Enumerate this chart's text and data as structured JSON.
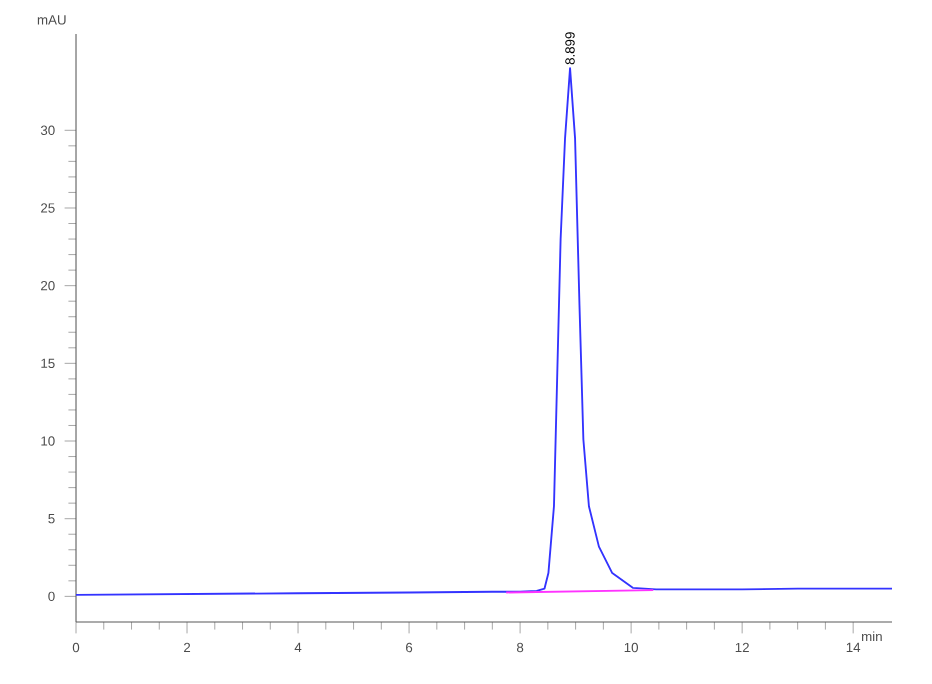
{
  "chart_data": {
    "type": "line",
    "xlabel": "min",
    "ylabel": "mAU",
    "xlim": [
      0,
      14.7
    ],
    "ylim": [
      -1.65,
      36.2
    ],
    "xticks": [
      0,
      2,
      4,
      6,
      8,
      10,
      12,
      14
    ],
    "yticks": [
      0,
      5,
      10,
      15,
      20,
      25,
      30
    ],
    "series": [
      {
        "color": "#3333ff",
        "x": [
          0,
          2,
          4,
          6,
          7.5,
          8.0,
          8.3,
          8.44,
          8.51,
          8.61,
          8.67,
          8.73,
          8.81,
          8.9,
          8.99,
          9.07,
          9.14,
          9.24,
          9.42,
          9.66,
          10.03,
          10.45,
          11,
          12,
          13,
          14,
          14.7
        ],
        "values": [
          0.1,
          0.15,
          0.2,
          0.25,
          0.3,
          0.3,
          0.35,
          0.5,
          1.5,
          5.8,
          14.4,
          23,
          29.5,
          34,
          29.5,
          18.7,
          10.1,
          5.8,
          3.2,
          1.5,
          0.55,
          0.45,
          0.45,
          0.45,
          0.5,
          0.5,
          0.5
        ]
      },
      {
        "color": "#ff33ff",
        "x": [
          7.75,
          10.4
        ],
        "values": [
          0.25,
          0.4
        ]
      }
    ],
    "annotations": [
      {
        "text": "8.899",
        "x": 8.899,
        "y": 34
      }
    ]
  }
}
